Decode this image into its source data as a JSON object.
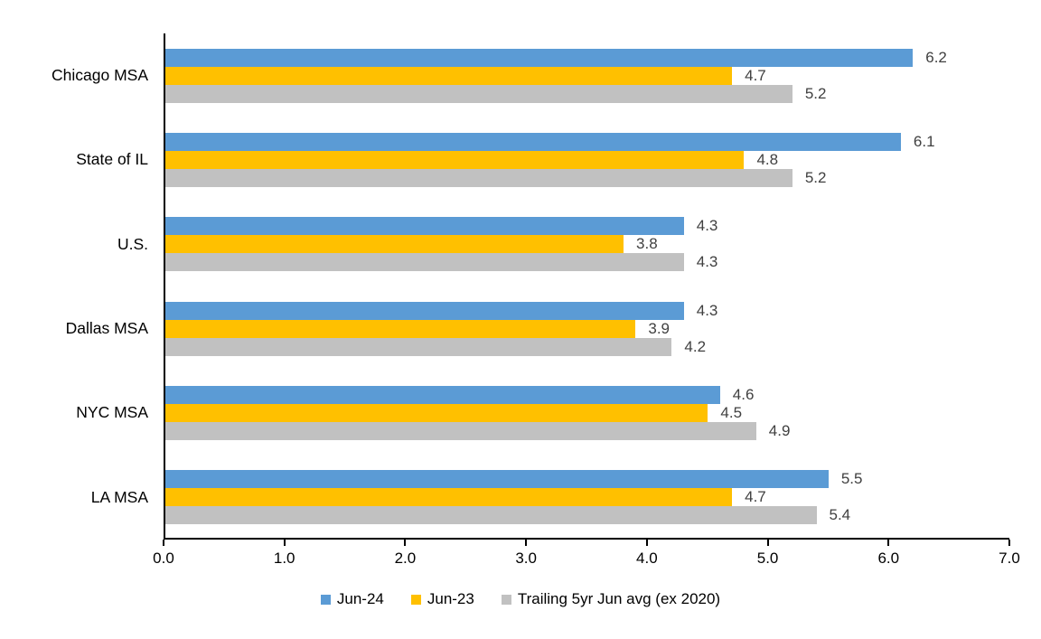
{
  "chart_data": {
    "type": "bar",
    "orientation": "horizontal",
    "title": "",
    "xlabel": "",
    "ylabel": "",
    "xlim": [
      0,
      7
    ],
    "x_ticks": [
      "0.0",
      "1.0",
      "2.0",
      "3.0",
      "4.0",
      "5.0",
      "6.0",
      "7.0"
    ],
    "grid": false,
    "data_labels": true,
    "legend_position": "bottom",
    "categories": [
      "Chicago MSA",
      "State of IL",
      "U.S.",
      "Dallas MSA",
      "NYC MSA",
      "LA MSA"
    ],
    "series": [
      {
        "name": "Jun-24",
        "color": "#5B9BD5",
        "values": [
          6.2,
          6.1,
          4.3,
          4.3,
          4.6,
          5.5
        ]
      },
      {
        "name": "Jun-23",
        "color": "#FFC000",
        "values": [
          4.7,
          4.8,
          3.8,
          3.9,
          4.5,
          4.7
        ]
      },
      {
        "name": "Trailing 5yr Jun avg (ex 2020)",
        "color": "#C1C1C1",
        "values": [
          5.2,
          5.2,
          4.3,
          4.2,
          4.9,
          5.4
        ]
      }
    ],
    "colors": {
      "axis": "#000000",
      "data_label_text": "#404040",
      "category_label_text": "#000000",
      "tick_label_text": "#000000",
      "background": "#FFFFFF"
    }
  }
}
